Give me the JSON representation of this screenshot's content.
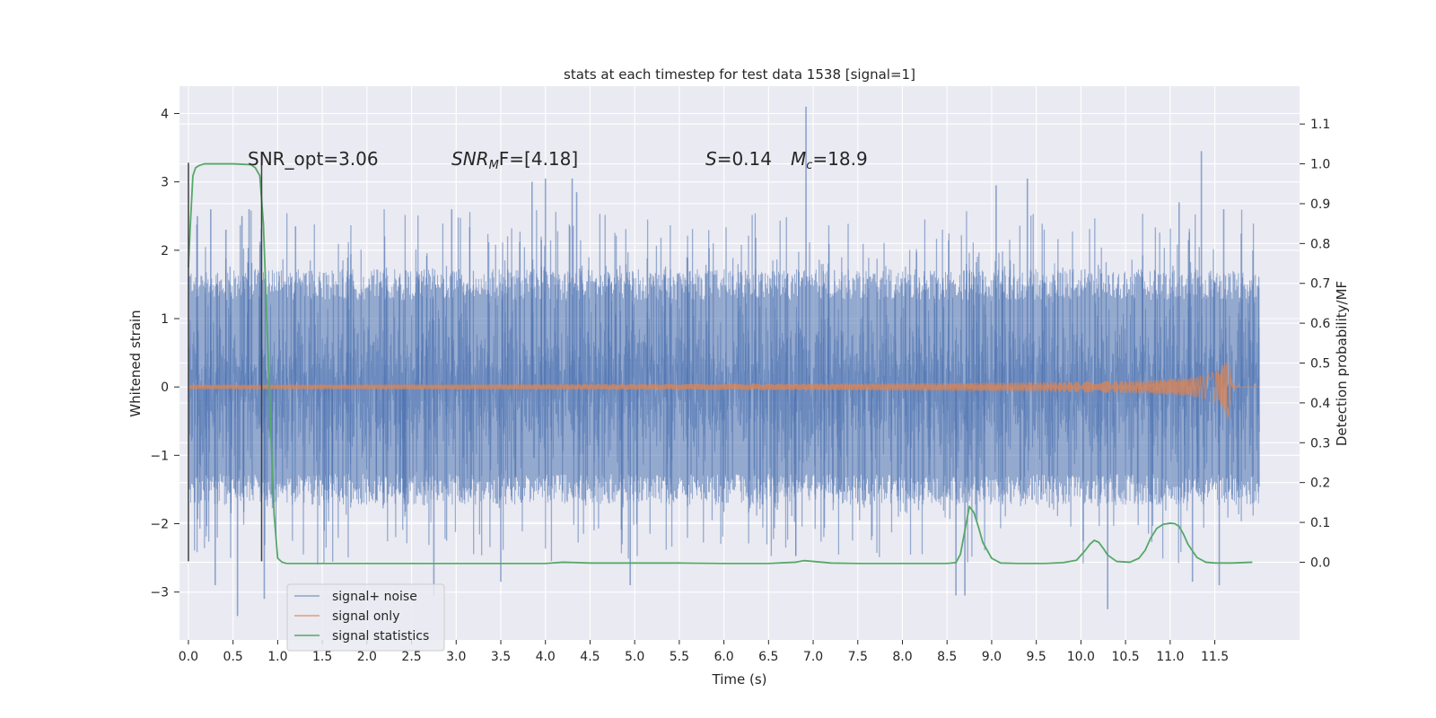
{
  "chart_data": {
    "type": "line",
    "title": "stats at each timestep for test data 1538 [signal=1]",
    "xlabel": "Time (s)",
    "ylabel_left": "Whitened strain",
    "ylabel_right": "Detection probability/MF",
    "xlim": [
      -0.1,
      12.45
    ],
    "ylim_left": [
      -3.7,
      4.4
    ],
    "ylim_right": [
      -0.195,
      1.195
    ],
    "xticks": [
      0.0,
      0.5,
      1.0,
      1.5,
      2.0,
      2.5,
      3.0,
      3.5,
      4.0,
      4.5,
      5.0,
      5.5,
      6.0,
      6.5,
      7.0,
      7.5,
      8.0,
      8.5,
      9.0,
      9.5,
      10.0,
      10.5,
      11.0,
      11.5
    ],
    "xtick_labels": [
      "0.0",
      "0.5",
      "1.0",
      "1.5",
      "2.0",
      "2.5",
      "3.0",
      "3.5",
      "4.0",
      "4.5",
      "5.0",
      "5.5",
      "6.0",
      "6.5",
      "7.0",
      "7.5",
      "8.0",
      "8.5",
      "9.0",
      "9.5",
      "10.0",
      "10.5",
      "11.0",
      "11.5"
    ],
    "yticks_left": [
      -3,
      -2,
      -1,
      0,
      1,
      2,
      3,
      4
    ],
    "ytick_labels_left": [
      "−3",
      "−2",
      "−1",
      "0",
      "1",
      "2",
      "3",
      "4"
    ],
    "yticks_right": [
      0.0,
      0.1,
      0.2,
      0.3,
      0.4,
      0.5,
      0.6,
      0.7,
      0.8,
      0.9,
      1.0,
      1.1
    ],
    "ytick_labels_right": [
      "0.0",
      "0.1",
      "0.2",
      "0.3",
      "0.4",
      "0.5",
      "0.6",
      "0.7",
      "0.8",
      "0.9",
      "1.0",
      "1.1"
    ],
    "grid": true,
    "legend_position": "lower-left",
    "legend": [
      "signal+ noise",
      "signal only",
      "signal statistics"
    ],
    "annotations": {
      "snr_opt": "SNR_opt=3.06",
      "snr_mf_sym": "SNR",
      "snr_mf_sub": "M",
      "snr_mf_rest": "F=[4.18]",
      "s_sym": "S",
      "s_val": "=0.14",
      "mc_sym": "M",
      "mc_sub": "c",
      "mc_val": "=18.9"
    },
    "colors": {
      "background": "#eaeaf2",
      "grid": "#ffffff",
      "signal_noise": "#4c72b0",
      "signal_only": "#dd8452",
      "statistics": "#55a868",
      "marker_lines": "#404040"
    },
    "markers_x": [
      0.0,
      0.82
    ],
    "markers_ylim": [
      -2.55,
      3.28
    ],
    "series": [
      {
        "name": "signal+ noise",
        "axis": "left",
        "x_range": [
          0.0,
          12.0
        ],
        "core_amplitude": 1.5,
        "peaks": [
          [
            0.1,
            2.5
          ],
          [
            0.25,
            2.6
          ],
          [
            0.42,
            2.3
          ],
          [
            0.6,
            2.5
          ],
          [
            0.68,
            2.6
          ],
          [
            1.2,
            2.35
          ],
          [
            2.95,
            2.6
          ],
          [
            3.85,
            3.0
          ],
          [
            4.0,
            3.05
          ],
          [
            4.3,
            3.05
          ],
          [
            4.35,
            2.85
          ],
          [
            6.92,
            4.1
          ],
          [
            9.05,
            2.95
          ],
          [
            9.4,
            3.05
          ],
          [
            11.1,
            2.7
          ],
          [
            11.35,
            3.45
          ],
          [
            11.6,
            2.6
          ]
        ],
        "troughs": [
          [
            0.55,
            -3.35
          ],
          [
            0.3,
            -2.9
          ],
          [
            0.85,
            -3.1
          ],
          [
            2.75,
            -3.05
          ],
          [
            3.5,
            -2.85
          ],
          [
            4.95,
            -2.9
          ],
          [
            8.6,
            -3.05
          ],
          [
            8.7,
            -3.05
          ],
          [
            10.3,
            -3.25
          ],
          [
            11.25,
            -2.85
          ],
          [
            11.55,
            -2.9
          ]
        ]
      },
      {
        "name": "signal only",
        "axis": "left",
        "x_range": [
          0.0,
          12.0
        ],
        "chirp_end": 11.65,
        "peak_amplitude": 0.58
      },
      {
        "name": "signal statistics",
        "axis": "right",
        "x": [
          0.0,
          0.02,
          0.05,
          0.08,
          0.12,
          0.18,
          0.3,
          0.5,
          0.7,
          0.75,
          0.8,
          0.84,
          0.88,
          0.92,
          0.96,
          1.0,
          1.05,
          1.1,
          1.3,
          2.0,
          3.0,
          4.0,
          4.2,
          4.5,
          5.0,
          5.5,
          6.0,
          6.5,
          6.8,
          6.9,
          7.0,
          7.2,
          7.5,
          8.0,
          8.3,
          8.5,
          8.6,
          8.65,
          8.7,
          8.75,
          8.8,
          8.85,
          8.9,
          9.0,
          9.1,
          9.3,
          9.6,
          9.8,
          9.95,
          10.05,
          10.1,
          10.15,
          10.2,
          10.25,
          10.3,
          10.4,
          10.55,
          10.65,
          10.72,
          10.78,
          10.85,
          10.92,
          11.0,
          11.05,
          11.1,
          11.15,
          11.2,
          11.3,
          11.4,
          11.5,
          11.7,
          11.92
        ],
        "values": [
          0.74,
          0.84,
          0.97,
          0.99,
          0.996,
          1.0,
          1.0,
          1.0,
          0.998,
          0.99,
          0.97,
          0.85,
          0.6,
          0.35,
          0.12,
          0.01,
          0.0,
          -0.003,
          -0.003,
          -0.003,
          -0.003,
          -0.003,
          0.0,
          -0.002,
          -0.002,
          -0.002,
          -0.003,
          -0.003,
          0.0,
          0.004,
          0.002,
          -0.002,
          -0.003,
          -0.003,
          -0.003,
          -0.003,
          -0.001,
          0.02,
          0.08,
          0.14,
          0.125,
          0.09,
          0.05,
          0.01,
          -0.002,
          -0.003,
          -0.003,
          -0.001,
          0.005,
          0.03,
          0.045,
          0.055,
          0.05,
          0.035,
          0.018,
          0.002,
          0.0,
          0.01,
          0.03,
          0.06,
          0.085,
          0.095,
          0.098,
          0.097,
          0.09,
          0.07,
          0.045,
          0.012,
          0.0,
          -0.002,
          -0.002,
          0.0
        ]
      }
    ]
  }
}
